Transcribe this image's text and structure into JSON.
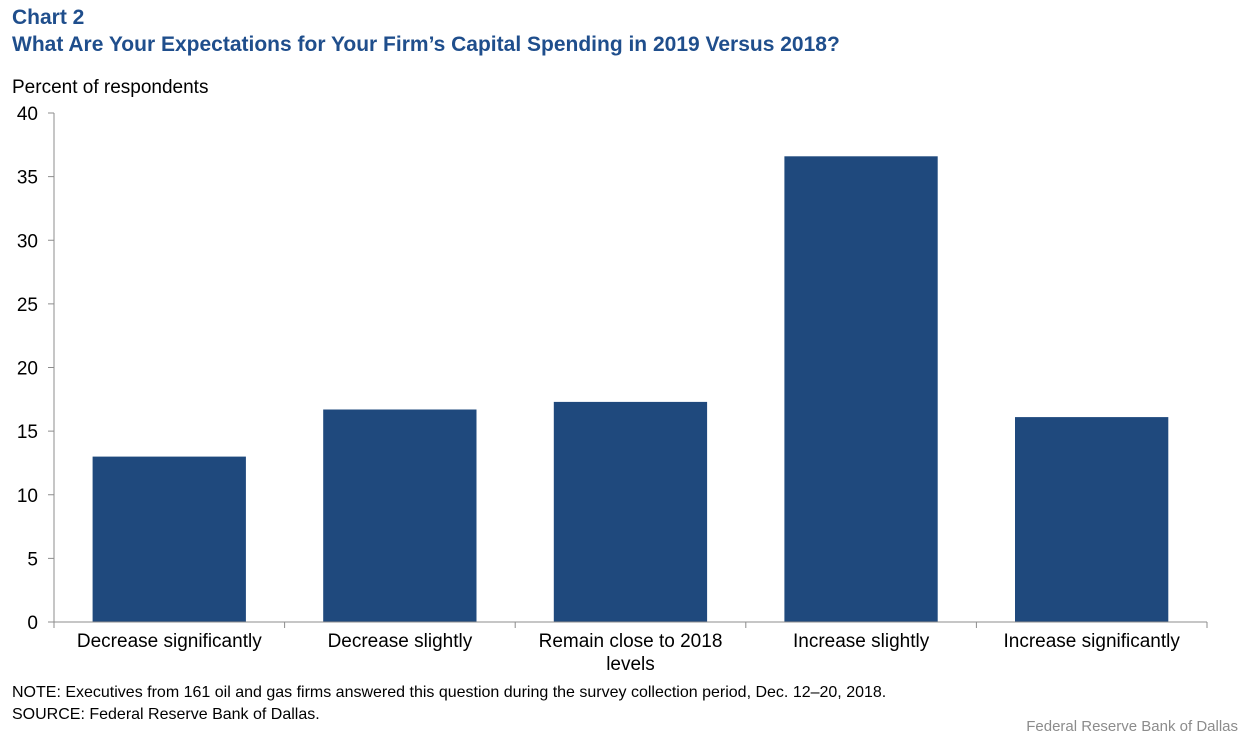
{
  "header": {
    "chart_label": "Chart 2",
    "title": "What Are Your Expectations for Your Firm’s Capital Spending in 2019 Versus 2018?"
  },
  "chart_data": {
    "type": "bar",
    "title": "What Are Your Expectations for Your Firm’s Capital Spending in 2019 Versus 2018?",
    "xlabel": "",
    "ylabel": "Percent of respondents",
    "categories": [
      [
        "Decrease significantly"
      ],
      [
        "Decrease slightly"
      ],
      [
        "Remain close to 2018",
        "levels"
      ],
      [
        "Increase slightly"
      ],
      [
        "Increase significantly"
      ]
    ],
    "values": [
      13.0,
      16.7,
      17.3,
      36.6,
      16.1
    ],
    "ylim": [
      0,
      40
    ],
    "yticks": [
      0,
      5,
      10,
      15,
      20,
      25,
      30,
      35,
      40
    ],
    "bar_color": "#1f497d",
    "grid": false,
    "legend": "none"
  },
  "notes": {
    "note": "NOTE: Executives from 161 oil and gas firms answered this question during the survey collection period, Dec. 12–20, 2018.",
    "source": "SOURCE: Federal Reserve Bank of Dallas."
  },
  "footer": {
    "credit": "Federal Reserve Bank of Dallas"
  }
}
